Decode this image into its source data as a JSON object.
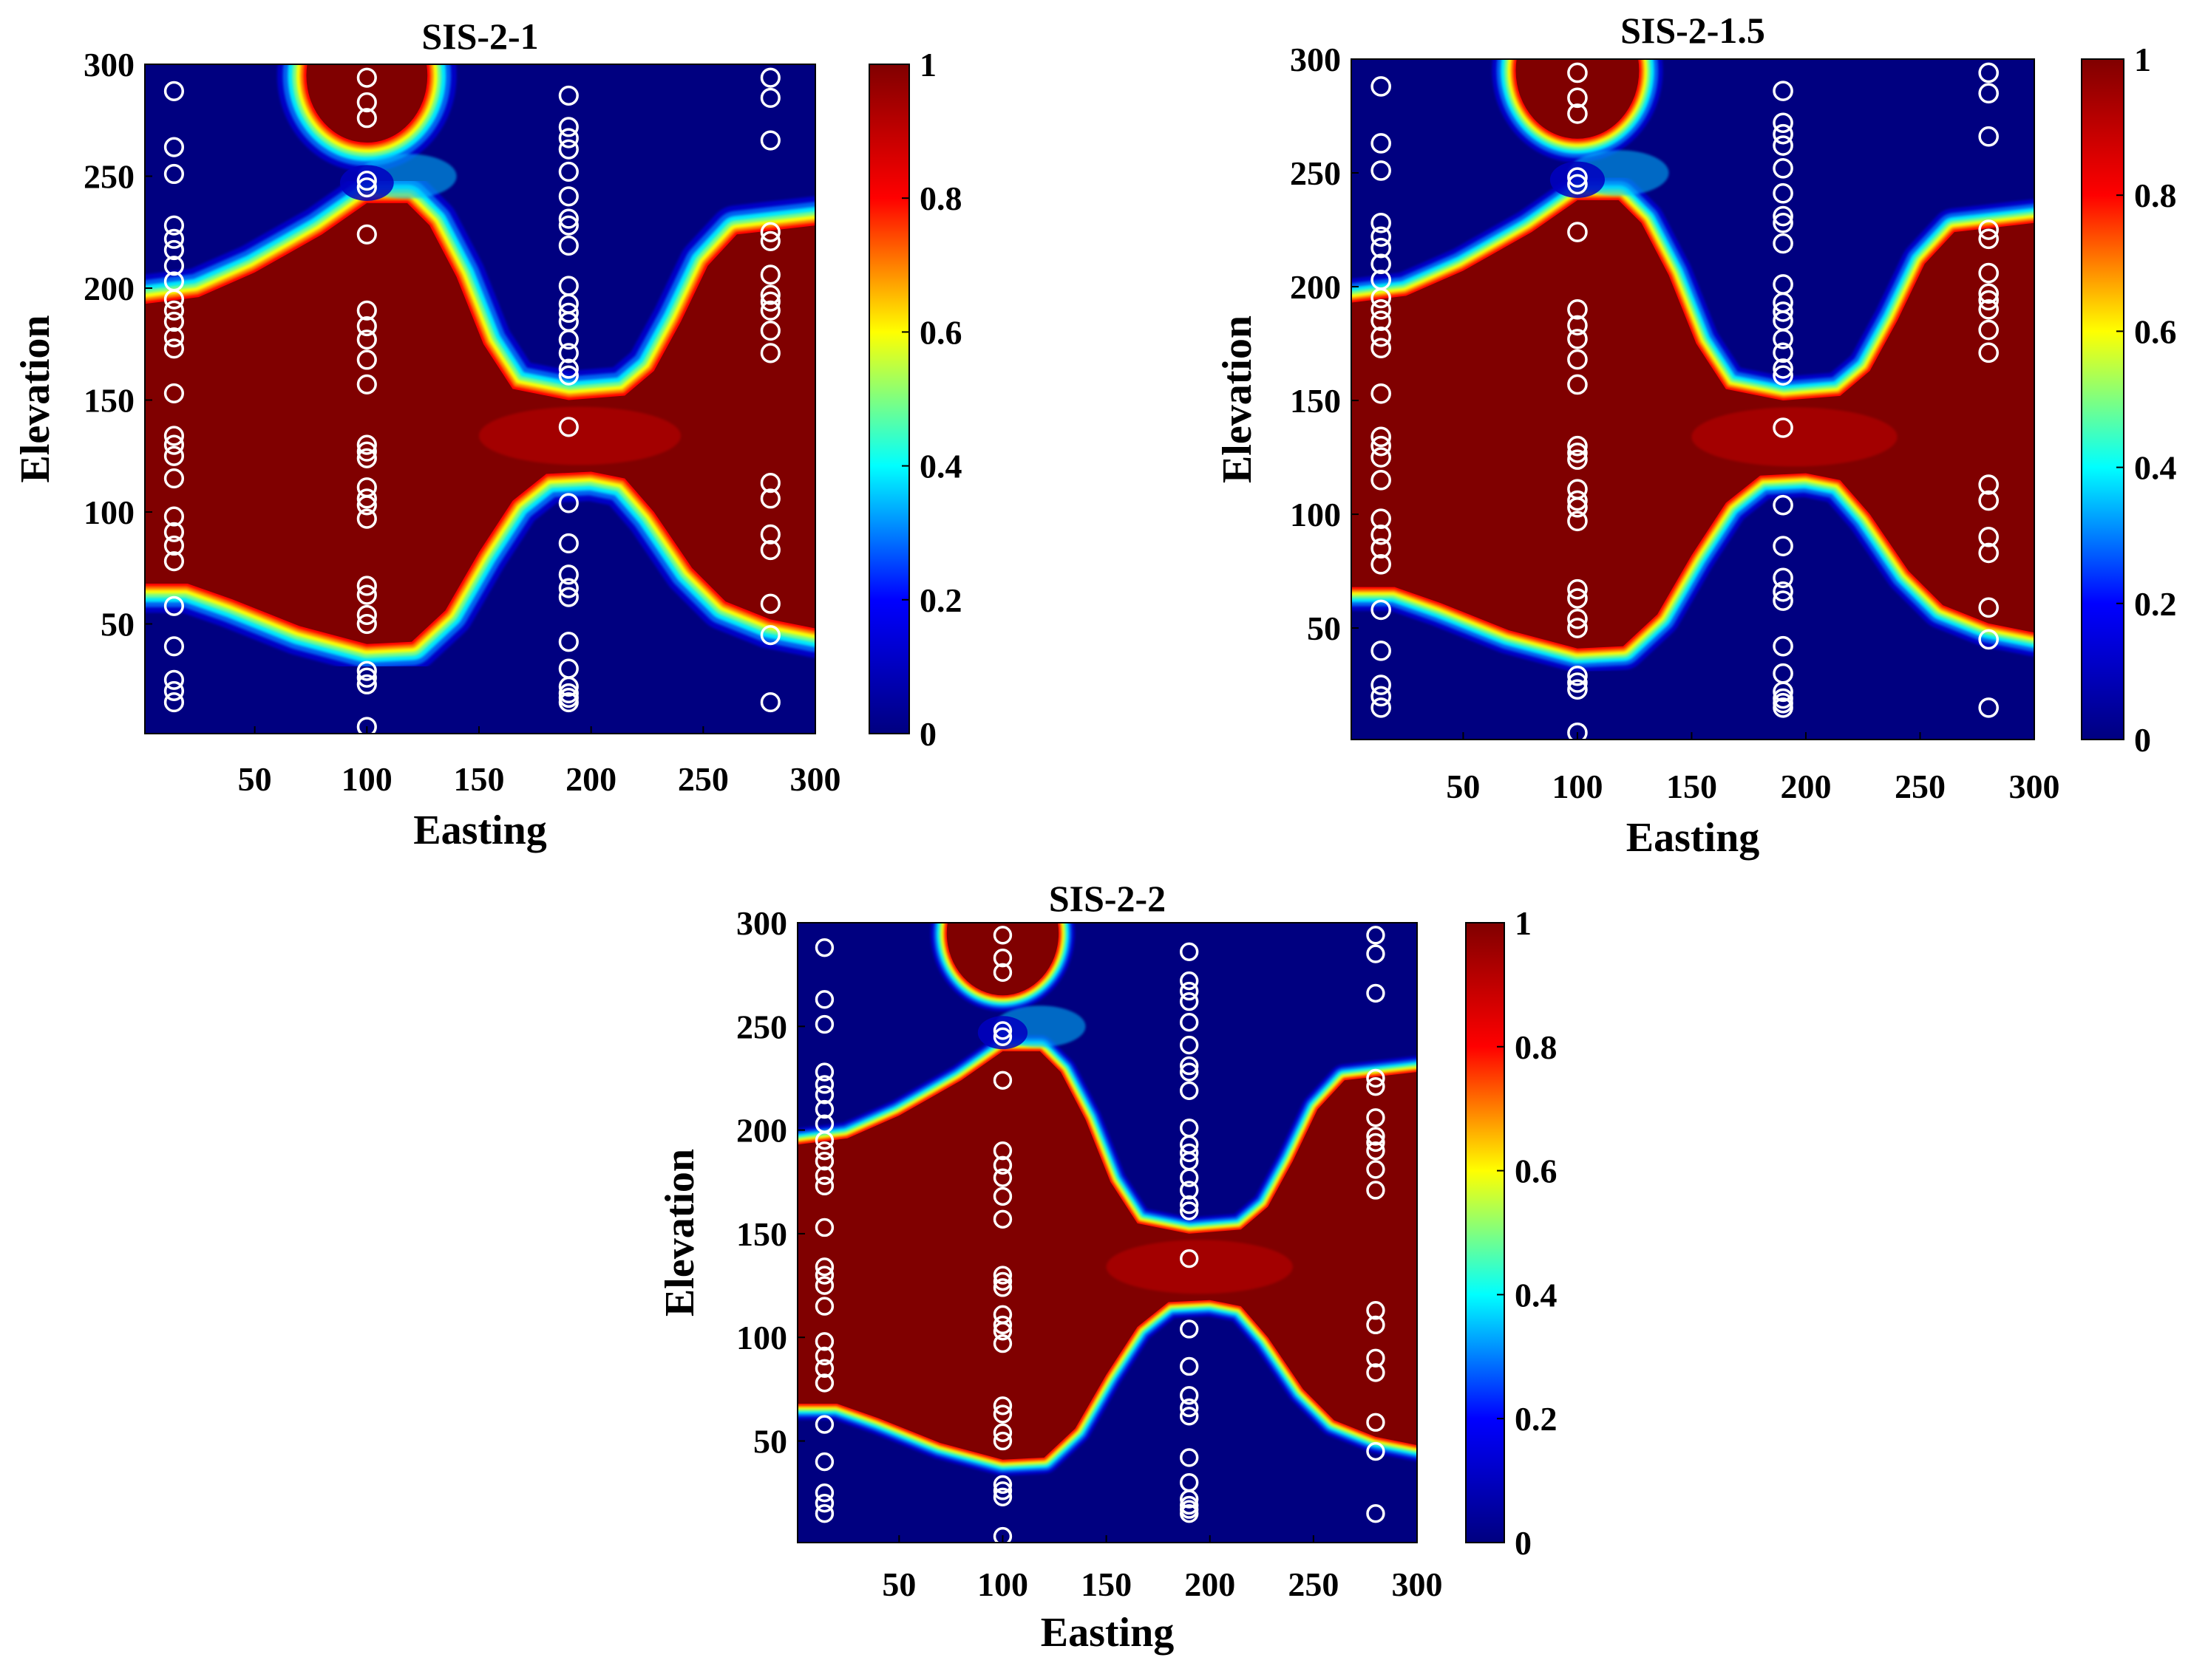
{
  "colormap": {
    "name": "jet",
    "stops": [
      "#000080",
      "#0000ff",
      "#00ffff",
      "#ffff00",
      "#ff0000",
      "#800000"
    ]
  },
  "chart_data": [
    {
      "type": "heatmap",
      "title": "SIS-2-1",
      "xlabel": "Easting",
      "ylabel": "Elevation",
      "xlim": [
        1,
        300
      ],
      "ylim": [
        1,
        300
      ],
      "xticks": [
        "50",
        "100",
        "150",
        "200",
        "250",
        "300"
      ],
      "yticks": [
        "50",
        "100",
        "150",
        "200",
        "250",
        "300"
      ],
      "colorbar": {
        "range": [
          0,
          1
        ],
        "ticks": [
          "0",
          "0.2",
          "0.4",
          "0.6",
          "0.8",
          "1"
        ]
      },
      "boundary_width": 5,
      "upper_boundary": [
        [
          1,
          193
        ],
        [
          25,
          196
        ],
        [
          50,
          207
        ],
        [
          80,
          224
        ],
        [
          100,
          238
        ],
        [
          118,
          238
        ],
        [
          128,
          228
        ],
        [
          140,
          205
        ],
        [
          152,
          175
        ],
        [
          165,
          155
        ],
        [
          190,
          150
        ],
        [
          215,
          152
        ],
        [
          228,
          163
        ],
        [
          240,
          185
        ],
        [
          252,
          210
        ],
        [
          265,
          224
        ],
        [
          300,
          228
        ]
      ],
      "lower_boundary": [
        [
          1,
          68
        ],
        [
          20,
          68
        ],
        [
          40,
          61
        ],
        [
          70,
          49
        ],
        [
          100,
          41
        ],
        [
          120,
          42
        ],
        [
          135,
          56
        ],
        [
          150,
          82
        ],
        [
          165,
          105
        ],
        [
          180,
          117
        ],
        [
          200,
          118
        ],
        [
          215,
          115
        ],
        [
          228,
          100
        ],
        [
          245,
          75
        ],
        [
          260,
          60
        ],
        [
          280,
          52
        ],
        [
          300,
          48
        ]
      ],
      "top_blob": {
        "center": [
          100,
          295
        ],
        "radius": [
          27,
          30
        ]
      },
      "wells": [
        {
          "x": 14,
          "y": [
            15,
            20,
            25,
            40,
            58,
            78,
            85,
            91,
            98,
            115,
            125,
            130,
            134,
            153,
            173,
            178,
            185,
            190,
            195,
            203,
            210,
            217,
            222,
            228,
            251,
            263,
            288
          ]
        },
        {
          "x": 100,
          "y": [
            4,
            23,
            26,
            29,
            50,
            54,
            63,
            67,
            97,
            103,
            106,
            111,
            124,
            127,
            130,
            157,
            168,
            177,
            183,
            190,
            224,
            245,
            248,
            276,
            283,
            294
          ]
        },
        {
          "x": 190,
          "y": [
            15,
            17,
            19,
            22,
            30,
            42,
            62,
            66,
            72,
            86,
            104,
            138,
            161,
            164,
            171,
            177,
            185,
            189,
            193,
            201,
            219,
            228,
            231,
            241,
            252,
            262,
            267,
            272,
            286
          ]
        },
        {
          "x": 280,
          "y": [
            15,
            45,
            59,
            83,
            90,
            106,
            113,
            171,
            181,
            190,
            194,
            197,
            206,
            221,
            225,
            266,
            285,
            294
          ]
        }
      ]
    },
    {
      "type": "heatmap",
      "title": "SIS-2-1.5",
      "xlabel": "Easting",
      "ylabel": "Elevation",
      "xlim": [
        1,
        300
      ],
      "ylim": [
        1,
        300
      ],
      "xticks": [
        "50",
        "100",
        "150",
        "200",
        "250",
        "300"
      ],
      "yticks": [
        "50",
        "100",
        "150",
        "200",
        "250",
        "300"
      ],
      "colorbar": {
        "range": [
          0,
          1
        ],
        "ticks": [
          "0",
          "0.2",
          "0.4",
          "0.6",
          "0.8",
          "1"
        ]
      },
      "boundary_width": 4,
      "upper_boundary": [
        [
          1,
          193
        ],
        [
          25,
          196
        ],
        [
          50,
          207
        ],
        [
          80,
          224
        ],
        [
          100,
          238
        ],
        [
          118,
          238
        ],
        [
          128,
          228
        ],
        [
          140,
          205
        ],
        [
          152,
          175
        ],
        [
          165,
          155
        ],
        [
          190,
          150
        ],
        [
          215,
          152
        ],
        [
          228,
          163
        ],
        [
          240,
          185
        ],
        [
          252,
          210
        ],
        [
          265,
          224
        ],
        [
          300,
          228
        ]
      ],
      "lower_boundary": [
        [
          1,
          68
        ],
        [
          20,
          68
        ],
        [
          40,
          61
        ],
        [
          70,
          49
        ],
        [
          100,
          41
        ],
        [
          120,
          42
        ],
        [
          135,
          56
        ],
        [
          150,
          82
        ],
        [
          165,
          105
        ],
        [
          180,
          117
        ],
        [
          200,
          118
        ],
        [
          215,
          115
        ],
        [
          228,
          100
        ],
        [
          245,
          75
        ],
        [
          260,
          60
        ],
        [
          280,
          52
        ],
        [
          300,
          48
        ]
      ],
      "top_blob": {
        "center": [
          100,
          295
        ],
        "radius": [
          27,
          30
        ]
      },
      "wells": [
        {
          "x": 14,
          "y": [
            15,
            20,
            25,
            40,
            58,
            78,
            85,
            91,
            98,
            115,
            125,
            130,
            134,
            153,
            173,
            178,
            185,
            190,
            195,
            203,
            210,
            217,
            222,
            228,
            251,
            263,
            288
          ]
        },
        {
          "x": 100,
          "y": [
            4,
            23,
            26,
            29,
            50,
            54,
            63,
            67,
            97,
            103,
            106,
            111,
            124,
            127,
            130,
            157,
            168,
            177,
            183,
            190,
            224,
            245,
            248,
            276,
            283,
            294
          ]
        },
        {
          "x": 190,
          "y": [
            15,
            17,
            19,
            22,
            30,
            42,
            62,
            66,
            72,
            86,
            104,
            138,
            161,
            164,
            171,
            177,
            185,
            189,
            193,
            201,
            219,
            228,
            231,
            241,
            252,
            262,
            267,
            272,
            286
          ]
        },
        {
          "x": 280,
          "y": [
            15,
            45,
            59,
            83,
            90,
            106,
            113,
            171,
            181,
            190,
            194,
            197,
            206,
            221,
            225,
            266,
            285,
            294
          ]
        }
      ]
    },
    {
      "type": "heatmap",
      "title": "SIS-2-2",
      "xlabel": "Easting",
      "ylabel": "Elevation",
      "xlim": [
        1,
        300
      ],
      "ylim": [
        1,
        300
      ],
      "xticks": [
        "50",
        "100",
        "150",
        "200",
        "250",
        "300"
      ],
      "yticks": [
        "50",
        "100",
        "150",
        "200",
        "250",
        "300"
      ],
      "colorbar": {
        "range": [
          0,
          1
        ],
        "ticks": [
          "0",
          "0.2",
          "0.4",
          "0.6",
          "0.8",
          "1"
        ]
      },
      "boundary_width": 3,
      "upper_boundary": [
        [
          1,
          193
        ],
        [
          25,
          196
        ],
        [
          50,
          207
        ],
        [
          80,
          224
        ],
        [
          100,
          238
        ],
        [
          118,
          238
        ],
        [
          128,
          228
        ],
        [
          140,
          205
        ],
        [
          152,
          175
        ],
        [
          165,
          155
        ],
        [
          190,
          150
        ],
        [
          215,
          152
        ],
        [
          228,
          163
        ],
        [
          240,
          185
        ],
        [
          252,
          210
        ],
        [
          265,
          224
        ],
        [
          300,
          228
        ]
      ],
      "lower_boundary": [
        [
          1,
          68
        ],
        [
          20,
          68
        ],
        [
          40,
          61
        ],
        [
          70,
          49
        ],
        [
          100,
          41
        ],
        [
          120,
          42
        ],
        [
          135,
          56
        ],
        [
          150,
          82
        ],
        [
          165,
          105
        ],
        [
          180,
          117
        ],
        [
          200,
          118
        ],
        [
          215,
          115
        ],
        [
          228,
          100
        ],
        [
          245,
          75
        ],
        [
          260,
          60
        ],
        [
          280,
          52
        ],
        [
          300,
          48
        ]
      ],
      "top_blob": {
        "center": [
          100,
          295
        ],
        "radius": [
          27,
          30
        ]
      },
      "wells": [
        {
          "x": 14,
          "y": [
            15,
            20,
            25,
            40,
            58,
            78,
            85,
            91,
            98,
            115,
            125,
            130,
            134,
            153,
            173,
            178,
            185,
            190,
            195,
            203,
            210,
            217,
            222,
            228,
            251,
            263,
            288
          ]
        },
        {
          "x": 100,
          "y": [
            4,
            23,
            26,
            29,
            50,
            54,
            63,
            67,
            97,
            103,
            106,
            111,
            124,
            127,
            130,
            157,
            168,
            177,
            183,
            190,
            224,
            245,
            248,
            276,
            283,
            294
          ]
        },
        {
          "x": 190,
          "y": [
            15,
            17,
            19,
            22,
            30,
            42,
            62,
            66,
            72,
            86,
            104,
            138,
            161,
            164,
            171,
            177,
            185,
            189,
            193,
            201,
            219,
            228,
            231,
            241,
            252,
            262,
            267,
            272,
            286
          ]
        },
        {
          "x": 280,
          "y": [
            15,
            45,
            59,
            83,
            90,
            106,
            113,
            171,
            181,
            190,
            194,
            197,
            206,
            221,
            225,
            266,
            285,
            294
          ]
        }
      ]
    }
  ]
}
